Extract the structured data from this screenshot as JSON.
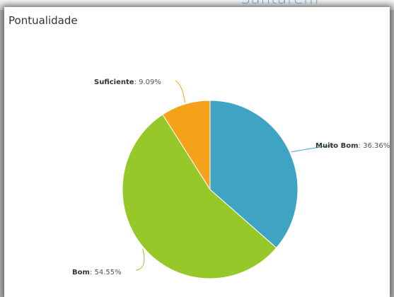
{
  "header": {
    "text": "Santarém"
  },
  "panel": {
    "title": "Pontualidade"
  },
  "chart_data": {
    "type": "pie",
    "title": "Pontualidade",
    "slices": [
      {
        "name": "Muito Bom",
        "value": 36.36,
        "label_value": "36.36%",
        "color": "#3fa3c4"
      },
      {
        "name": "Bom",
        "value": 54.55,
        "label_value": "54.55%",
        "color": "#96c82a"
      },
      {
        "name": "Suficiente",
        "value": 9.09,
        "label_value": "9.09%",
        "color": "#f3a21a"
      }
    ],
    "start_angle_deg": 0,
    "direction": "clockwise",
    "legend": "none",
    "data_labels": "outside-with-connectors"
  }
}
